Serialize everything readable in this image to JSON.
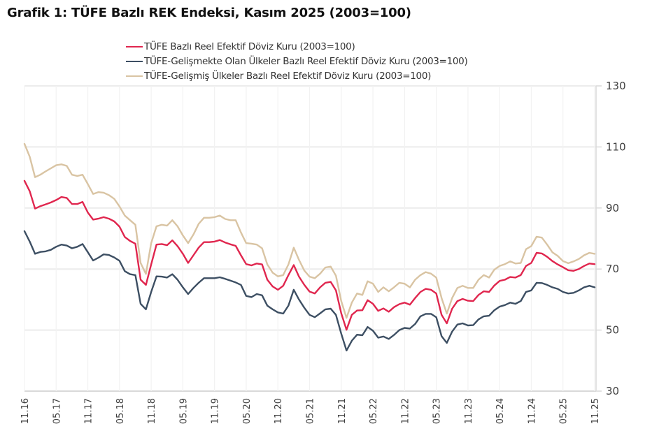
{
  "chart_data": {
    "type": "line",
    "title": "Grafik 1: TÜFE Bazlı REK Endeksi, Kasım 2025 (2003=100)",
    "xlabel": "",
    "ylabel": "",
    "ylim": [
      30,
      130
    ],
    "yticks": [
      "30",
      "50",
      "70",
      "90",
      "110",
      "130"
    ],
    "y_axis_side": "right",
    "grid": true,
    "legend_position": "top",
    "x_start": "11.16",
    "x_end": "11.25",
    "x_frequency": "monthly",
    "xtick_labels": [
      "11.16",
      "05.17",
      "11.17",
      "05.18",
      "11.18",
      "05.19",
      "11.19",
      "05.20",
      "11.20",
      "05.21",
      "11.21",
      "05.22",
      "11.22",
      "05.23",
      "11.23",
      "05.24",
      "11.24",
      "05.25",
      "11.25"
    ],
    "series": [
      {
        "name": "TÜFE  Bazlı Reel Efektif Döviz Kuru (2003=100)",
        "color": "#e0264e",
        "values": [
          98.9,
          95.5,
          89.8,
          90.6,
          91.2,
          91.8,
          92.6,
          93.6,
          93.3,
          91.3,
          91.3,
          92.0,
          88.5,
          86.2,
          86.5,
          87.0,
          86.5,
          85.6,
          83.9,
          80.5,
          79.2,
          78.3,
          66.5,
          64.8,
          71.5,
          78.0,
          78.2,
          77.8,
          79.4,
          77.5,
          75.0,
          72.0,
          74.5,
          77.0,
          78.8,
          78.8,
          79.0,
          79.5,
          78.7,
          78.1,
          77.6,
          74.5,
          71.6,
          71.2,
          71.8,
          71.5,
          66.5,
          64.3,
          63.2,
          64.5,
          68.0,
          71.3,
          67.5,
          64.8,
          62.6,
          62.0,
          64.0,
          65.5,
          65.8,
          63.0,
          55.5,
          50.1,
          55.0,
          56.4,
          56.5,
          59.8,
          58.6,
          56.3,
          57.1,
          56.0,
          57.5,
          58.5,
          59.0,
          58.3,
          60.5,
          62.5,
          63.5,
          63.2,
          62.0,
          55.0,
          52.2,
          57.0,
          59.5,
          60.2,
          59.6,
          59.5,
          61.5,
          62.7,
          62.5,
          64.6,
          66.1,
          66.5,
          67.4,
          67.2,
          68.0,
          71.0,
          72.0,
          75.3,
          75.1,
          74.0,
          72.6,
          71.5,
          70.6,
          69.6,
          69.4,
          70.0,
          71.0,
          71.8,
          71.6
        ]
      },
      {
        "name": "TÜFE-Gelişmekte Olan Ülkeler Bazlı Reel Efektif Döviz Kuru (2003=100)",
        "color": "#3d4f63",
        "values": [
          82.4,
          79.0,
          75.0,
          75.6,
          75.8,
          76.3,
          77.3,
          78.0,
          77.7,
          76.8,
          77.3,
          78.2,
          75.5,
          72.8,
          73.7,
          74.8,
          74.6,
          73.8,
          72.7,
          69.3,
          68.3,
          68.0,
          58.6,
          56.8,
          62.5,
          67.6,
          67.5,
          67.2,
          68.3,
          66.5,
          64.0,
          61.8,
          63.8,
          65.5,
          67.0,
          67.0,
          67.0,
          67.3,
          66.8,
          66.2,
          65.6,
          64.8,
          61.2,
          60.8,
          61.8,
          61.4,
          58.0,
          56.8,
          55.8,
          55.4,
          58.0,
          63.2,
          60.0,
          57.3,
          55.0,
          54.2,
          55.5,
          56.8,
          57.0,
          55.0,
          48.8,
          43.3,
          46.5,
          48.5,
          48.3,
          51.0,
          49.8,
          47.5,
          47.9,
          47.1,
          48.4,
          50.0,
          50.7,
          50.5,
          52.0,
          54.5,
          55.3,
          55.3,
          54.2,
          48.0,
          45.8,
          49.5,
          51.8,
          52.2,
          51.5,
          51.6,
          53.5,
          54.5,
          54.7,
          56.5,
          57.7,
          58.2,
          59.0,
          58.6,
          59.5,
          62.5,
          63.0,
          65.5,
          65.4,
          64.8,
          64.0,
          63.5,
          62.5,
          62.0,
          62.2,
          63.0,
          64.0,
          64.5,
          64.0
        ]
      },
      {
        "name": "TÜFE-Gelişmiş Ülkeler Bazlı Reel Efektif Döviz Kuru (2003=100)",
        "color": "#d9c4a3",
        "values": [
          111.0,
          106.8,
          100.1,
          100.9,
          102.0,
          103.0,
          104.0,
          104.3,
          103.8,
          100.9,
          100.5,
          100.9,
          97.8,
          94.6,
          95.2,
          95.0,
          94.2,
          93.0,
          90.5,
          87.5,
          86.0,
          84.5,
          72.0,
          68.4,
          78.5,
          84.0,
          84.5,
          84.2,
          86.0,
          84.0,
          81.0,
          78.5,
          81.3,
          84.8,
          86.8,
          86.8,
          87.0,
          87.5,
          86.4,
          86.0,
          86.0,
          82.0,
          78.5,
          78.3,
          78.0,
          76.8,
          71.5,
          68.8,
          67.6,
          68.0,
          71.5,
          77.0,
          73.0,
          69.5,
          67.5,
          67.0,
          68.5,
          70.5,
          70.8,
          67.8,
          59.5,
          54.0,
          59.0,
          62.0,
          61.5,
          66.0,
          65.2,
          62.5,
          64.0,
          62.7,
          64.0,
          65.5,
          65.2,
          64.0,
          66.5,
          68.0,
          69.0,
          68.5,
          67.2,
          60.5,
          55.4,
          60.5,
          63.8,
          64.5,
          63.8,
          63.8,
          66.5,
          68.0,
          67.2,
          69.8,
          71.0,
          71.6,
          72.5,
          71.8,
          72.0,
          76.5,
          77.5,
          80.6,
          80.3,
          78.0,
          75.5,
          74.3,
          72.6,
          71.9,
          72.5,
          73.3,
          74.5,
          75.3,
          75.0
        ]
      }
    ]
  }
}
